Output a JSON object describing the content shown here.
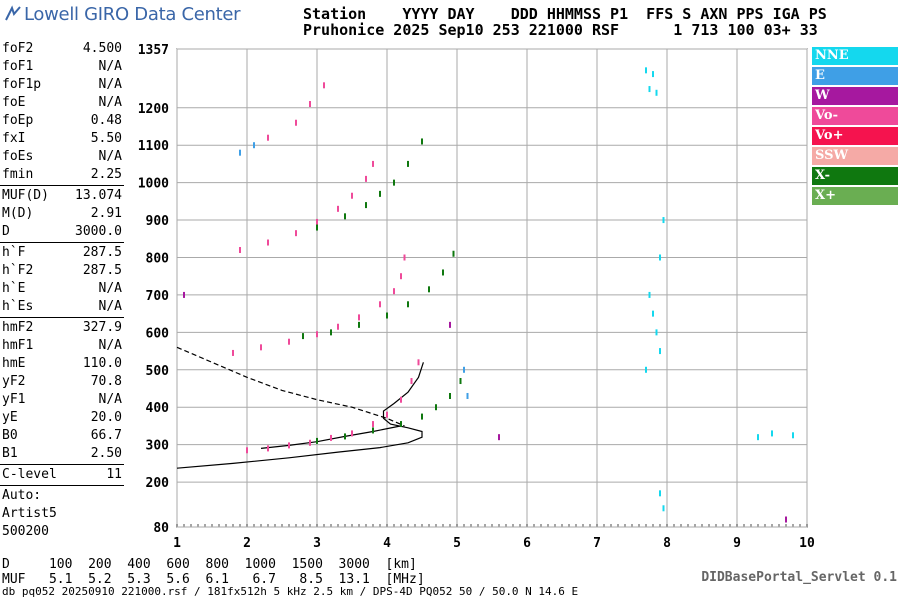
{
  "header": {
    "logo_text": "Lowell GIRO Data Center",
    "line1": "Station    YYYY DAY    DDD HHMMSS P1  FFS S AXN PPS IGA PS",
    "line2": "Pruhonice 2025 Sep10 253 221000 RSF      1 713 100 03+ 33"
  },
  "params": [
    {
      "label": "foF2",
      "value": "4.500"
    },
    {
      "label": "foF1",
      "value": "N/A"
    },
    {
      "label": "foF1p",
      "value": "N/A"
    },
    {
      "label": "foE",
      "value": "N/A"
    },
    {
      "label": "foEp",
      "value": "0.48"
    },
    {
      "label": "fxI",
      "value": "5.50"
    },
    {
      "label": "foEs",
      "value": "N/A"
    },
    {
      "label": "fmin",
      "value": "2.25"
    },
    {
      "sep": true
    },
    {
      "label": "MUF(D)",
      "value": "13.074"
    },
    {
      "label": "M(D)",
      "value": "2.91"
    },
    {
      "label": "D",
      "value": "3000.0"
    },
    {
      "sep": true
    },
    {
      "label": "h`F",
      "value": "287.5"
    },
    {
      "label": "h`F2",
      "value": "287.5"
    },
    {
      "label": "h`E",
      "value": "N/A"
    },
    {
      "label": "h`Es",
      "value": "N/A"
    },
    {
      "sep": true
    },
    {
      "label": "hmF2",
      "value": "327.9"
    },
    {
      "label": "hmF1",
      "value": "N/A"
    },
    {
      "label": "hmE",
      "value": "110.0"
    },
    {
      "label": "yF2",
      "value": "70.8"
    },
    {
      "label": "yF1",
      "value": "N/A"
    },
    {
      "label": "yE",
      "value": "20.0"
    },
    {
      "label": "B0",
      "value": "66.7"
    },
    {
      "label": "B1",
      "value": "2.50"
    },
    {
      "sep": true
    },
    {
      "label": "C-level",
      "value": "11"
    },
    {
      "sep": true
    },
    {
      "text": "Auto:"
    },
    {
      "text": "Artist5"
    },
    {
      "text": "500200"
    }
  ],
  "legend": [
    {
      "label": "NNE",
      "color": "#14d8ee"
    },
    {
      "label": "E",
      "color": "#3f9fe6"
    },
    {
      "label": "W",
      "color": "#a6189f"
    },
    {
      "label": "Vo-",
      "color": "#ef4a9a"
    },
    {
      "label": "Vo+",
      "color": "#f5134e"
    },
    {
      "label": "SSW",
      "color": "#f5aaa6"
    },
    {
      "label": "X-",
      "color": "#0f780f"
    },
    {
      "label": "X+",
      "color": "#6aae52"
    }
  ],
  "bottom": {
    "line_d": "D     100  200  400  600  800  1000  1500  3000  [km]",
    "line_muf": "MUF   5.1  5.2  5.3  5.6  6.1   6.7   8.5  13.1  [MHz]",
    "footer": "db pq052 20250910 221000.rsf / 181fx512h 5 kHz 2.5 km / DPS-4D PQ052 50 / 50.0 N 14.6 E",
    "servlet": "DIDBasePortal_Servlet 0.1"
  },
  "chart_data": {
    "type": "scatter",
    "xlim": [
      1,
      10
    ],
    "ylim": [
      80,
      1357
    ],
    "x_ticks": [
      1,
      2,
      3,
      4,
      5,
      6,
      7,
      8,
      9,
      10
    ],
    "y_ticks": [
      80,
      200,
      300,
      400,
      500,
      600,
      700,
      800,
      900,
      1000,
      1100,
      1200,
      1357
    ],
    "grid": true,
    "series": [
      {
        "name": "Vo-",
        "color": "#ef4a9a",
        "points": [
          [
            2.0,
            285
          ],
          [
            2.3,
            290
          ],
          [
            2.6,
            298
          ],
          [
            2.9,
            305
          ],
          [
            3.2,
            318
          ],
          [
            3.5,
            330
          ],
          [
            3.8,
            355
          ],
          [
            4.0,
            380
          ],
          [
            4.2,
            420
          ],
          [
            4.35,
            470
          ],
          [
            4.45,
            520
          ],
          [
            1.8,
            545
          ],
          [
            2.2,
            560
          ],
          [
            2.6,
            575
          ],
          [
            3.0,
            595
          ],
          [
            3.3,
            615
          ],
          [
            3.6,
            640
          ],
          [
            3.9,
            675
          ],
          [
            4.1,
            710
          ],
          [
            4.2,
            750
          ],
          [
            4.25,
            800
          ],
          [
            1.9,
            820
          ],
          [
            2.3,
            840
          ],
          [
            2.7,
            865
          ],
          [
            3.0,
            895
          ],
          [
            3.3,
            930
          ],
          [
            3.5,
            965
          ],
          [
            3.7,
            1010
          ],
          [
            3.8,
            1050
          ],
          [
            2.3,
            1120
          ],
          [
            2.7,
            1160
          ],
          [
            2.9,
            1210
          ],
          [
            3.1,
            1260
          ]
        ]
      },
      {
        "name": "X-",
        "color": "#0f780f",
        "points": [
          [
            3.0,
            310
          ],
          [
            3.4,
            322
          ],
          [
            3.8,
            338
          ],
          [
            4.2,
            355
          ],
          [
            4.5,
            375
          ],
          [
            4.7,
            400
          ],
          [
            4.9,
            430
          ],
          [
            5.05,
            470
          ],
          [
            2.8,
            590
          ],
          [
            3.2,
            600
          ],
          [
            3.6,
            620
          ],
          [
            4.0,
            645
          ],
          [
            4.3,
            675
          ],
          [
            4.6,
            715
          ],
          [
            4.8,
            760
          ],
          [
            4.95,
            810
          ],
          [
            3.0,
            880
          ],
          [
            3.4,
            910
          ],
          [
            3.7,
            940
          ],
          [
            3.9,
            970
          ],
          [
            4.1,
            1000
          ],
          [
            4.3,
            1050
          ],
          [
            4.5,
            1110
          ]
        ]
      },
      {
        "name": "NNE",
        "color": "#14d8ee",
        "points": [
          [
            7.7,
            1300
          ],
          [
            7.75,
            1250
          ],
          [
            7.8,
            1290
          ],
          [
            7.85,
            1240
          ],
          [
            7.75,
            700
          ],
          [
            7.8,
            650
          ],
          [
            7.85,
            600
          ],
          [
            7.9,
            800
          ],
          [
            7.9,
            550
          ],
          [
            7.95,
            900
          ],
          [
            7.7,
            500
          ],
          [
            7.9,
            170
          ],
          [
            7.95,
            130
          ],
          [
            9.3,
            320
          ],
          [
            9.5,
            330
          ],
          [
            9.8,
            325
          ]
        ]
      },
      {
        "name": "E",
        "color": "#3f9fe6",
        "points": [
          [
            5.1,
            500
          ],
          [
            5.15,
            430
          ],
          [
            1.9,
            1080
          ],
          [
            2.1,
            1100
          ]
        ]
      },
      {
        "name": "W",
        "color": "#a6189f",
        "points": [
          [
            1.1,
            700
          ],
          [
            9.7,
            100
          ],
          [
            5.6,
            320
          ],
          [
            4.9,
            620
          ]
        ]
      }
    ],
    "curves": [
      {
        "name": "profile",
        "style": "solid",
        "points": [
          [
            1.0,
            237
          ],
          [
            1.8,
            250
          ],
          [
            2.6,
            265
          ],
          [
            3.3,
            280
          ],
          [
            3.9,
            292
          ],
          [
            4.3,
            305
          ],
          [
            4.5,
            320
          ],
          [
            4.5,
            335
          ],
          [
            4.3,
            345
          ],
          [
            4.05,
            355
          ],
          [
            3.95,
            370
          ],
          [
            3.95,
            390
          ],
          [
            4.1,
            410
          ],
          [
            4.3,
            440
          ],
          [
            4.45,
            480
          ],
          [
            4.52,
            520
          ]
        ]
      },
      {
        "name": "trace",
        "style": "solid",
        "points": [
          [
            2.2,
            290
          ],
          [
            2.6,
            298
          ],
          [
            3.0,
            308
          ],
          [
            3.4,
            322
          ],
          [
            3.8,
            335
          ],
          [
            4.2,
            350
          ]
        ]
      },
      {
        "name": "bottomside",
        "style": "dashed",
        "points": [
          [
            1.0,
            560
          ],
          [
            1.5,
            520
          ],
          [
            2.0,
            480
          ],
          [
            2.5,
            445
          ],
          [
            3.0,
            420
          ],
          [
            3.5,
            400
          ],
          [
            4.0,
            370
          ],
          [
            4.25,
            350
          ]
        ]
      }
    ]
  }
}
